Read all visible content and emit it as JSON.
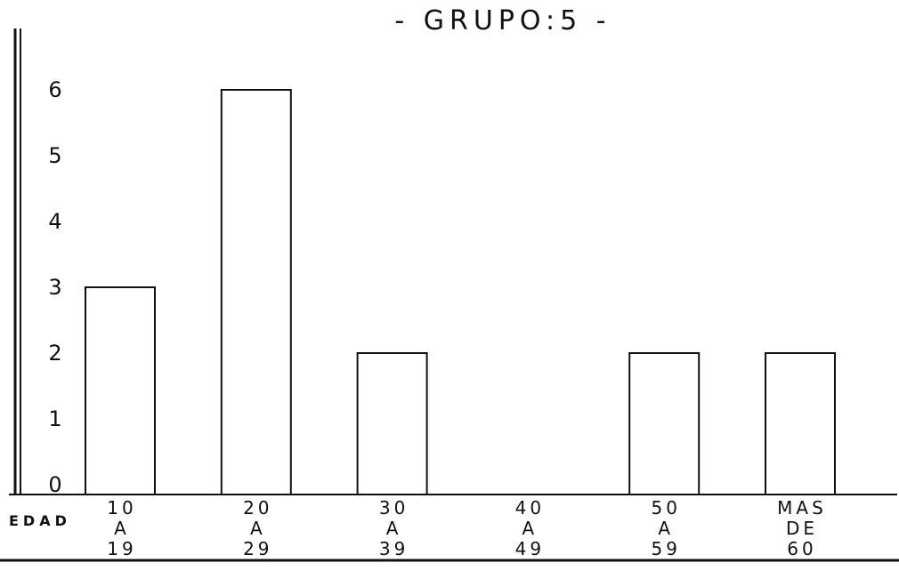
{
  "chart_data": {
    "type": "bar",
    "title": "- GRUPO:5 -",
    "xlabel": "EDAD",
    "ylabel": "",
    "categories": [
      [
        "10",
        "A",
        "19"
      ],
      [
        "20",
        "A",
        "29"
      ],
      [
        "30",
        "A",
        "39"
      ],
      [
        "40",
        "A",
        "49"
      ],
      [
        "50",
        "A",
        "59"
      ],
      [
        "MAS",
        "DE",
        "60"
      ]
    ],
    "values": [
      3,
      6,
      2,
      0,
      2,
      2
    ],
    "ylim": [
      0,
      6
    ],
    "yticks": [
      "0",
      "1",
      "2",
      "3",
      "4",
      "5",
      "6"
    ],
    "grid": false,
    "bar_fill": "#ffffff",
    "bar_stroke": "#111111"
  }
}
